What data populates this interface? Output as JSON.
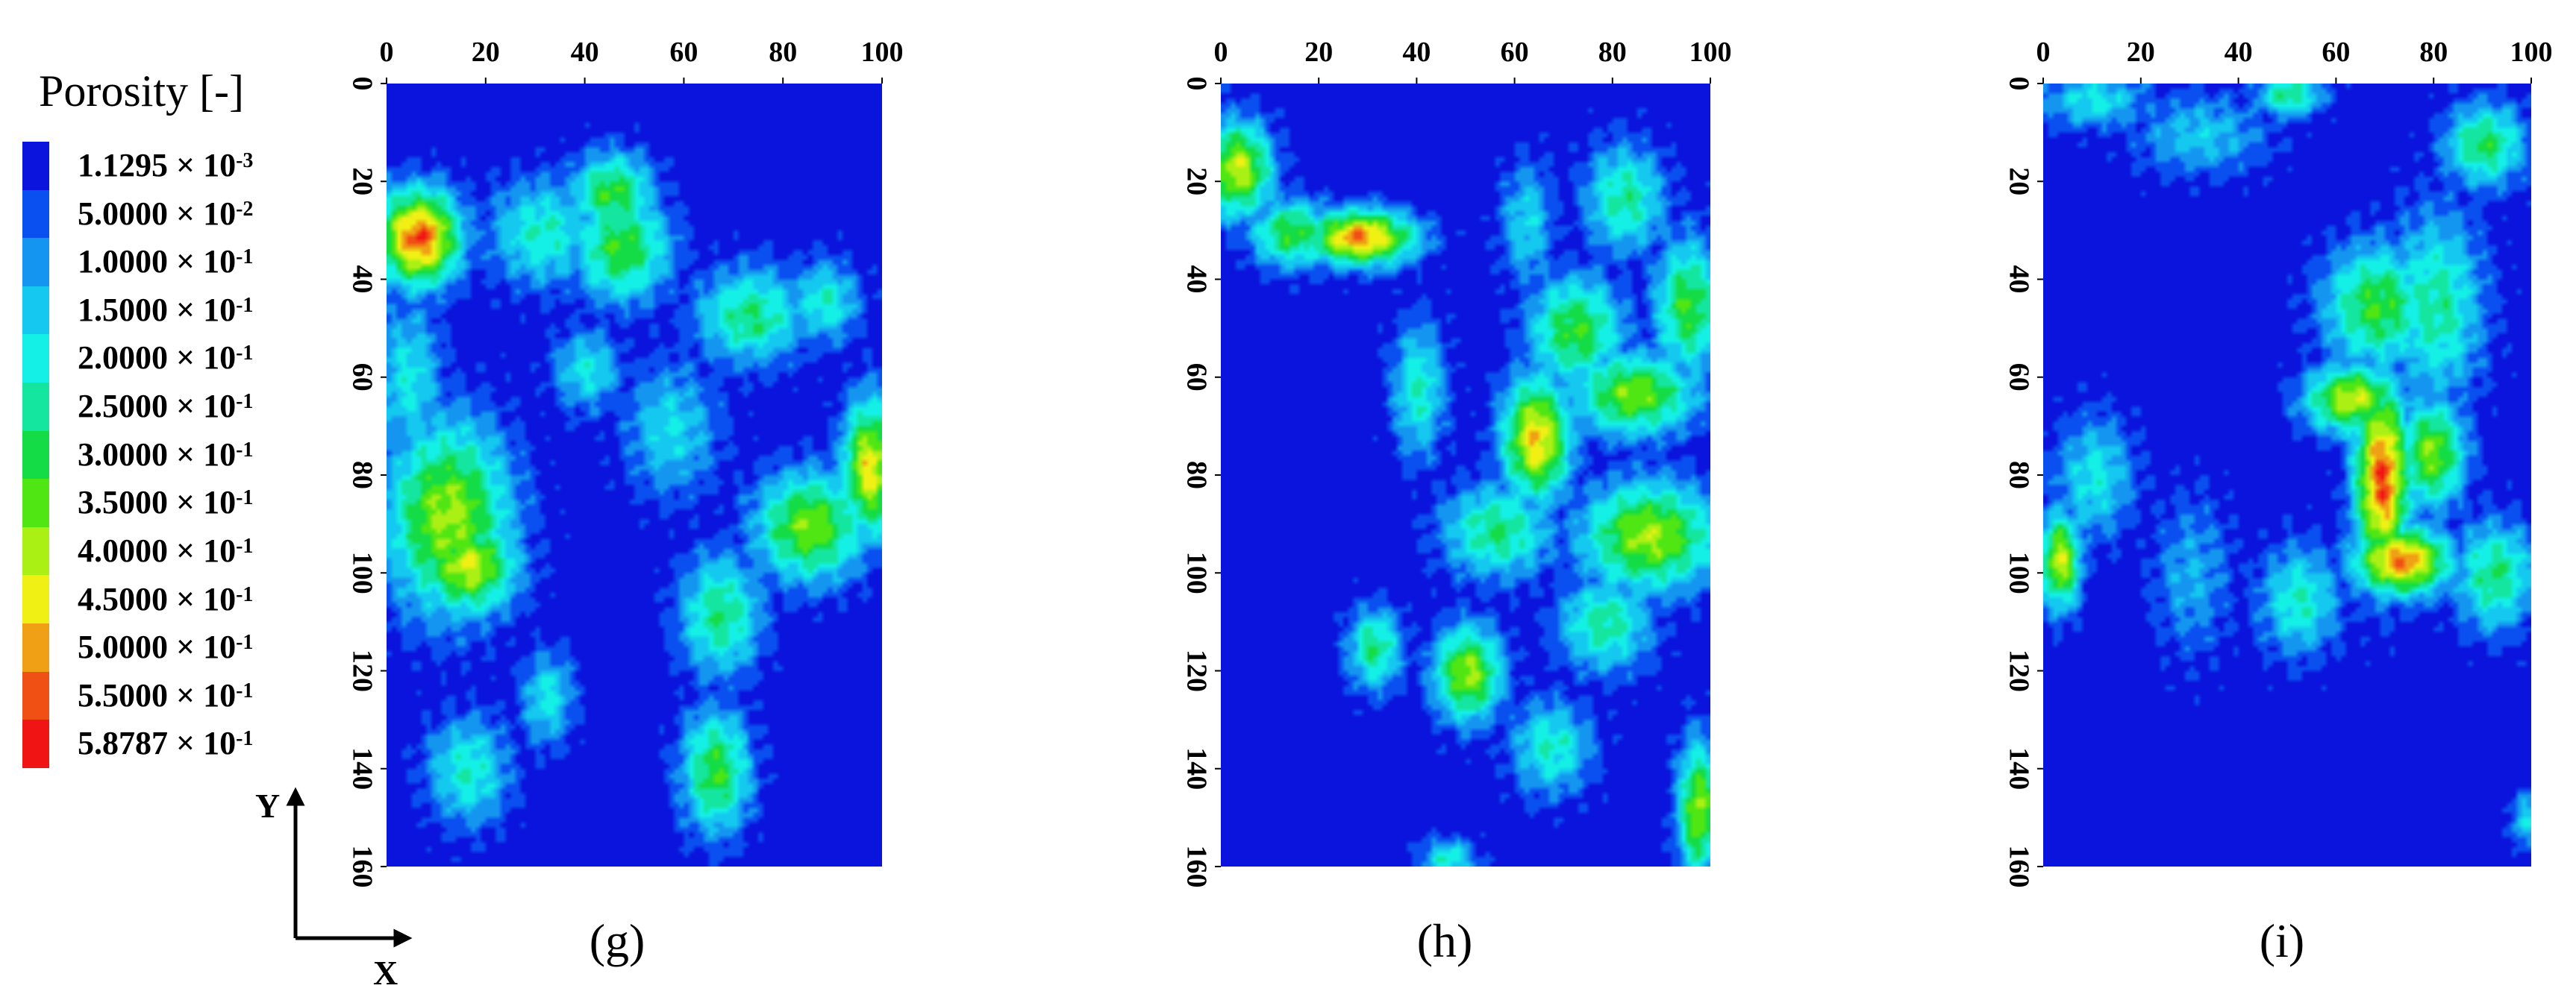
{
  "chart_data": [
    {
      "type": "heatmap",
      "panel_label": "(g)",
      "x_ticks": [
        0,
        20,
        40,
        60,
        80,
        100
      ],
      "y_ticks": [
        0,
        20,
        40,
        60,
        80,
        100,
        120,
        140,
        160
      ],
      "xlim": [
        0,
        100
      ],
      "ylim": [
        0,
        160
      ],
      "x_axis_position": "top",
      "y_axis_inverted": true,
      "background_value": 0.0011295,
      "hotspots": [
        {
          "x": 6,
          "y": 31,
          "peak": 0.58,
          "sx": 6,
          "sy": 7
        },
        {
          "x": 45,
          "y": 22,
          "peak": 0.35,
          "sx": 6,
          "sy": 6
        },
        {
          "x": 47,
          "y": 33,
          "peak": 0.35,
          "sx": 7,
          "sy": 8
        },
        {
          "x": 31,
          "y": 30,
          "peak": 0.25,
          "sx": 8,
          "sy": 8
        },
        {
          "x": 12,
          "y": 88,
          "peak": 0.42,
          "sx": 9,
          "sy": 14
        },
        {
          "x": 16,
          "y": 98,
          "peak": 0.45,
          "sx": 7,
          "sy": 7
        },
        {
          "x": 73,
          "y": 47,
          "peak": 0.3,
          "sx": 8,
          "sy": 7
        },
        {
          "x": 85,
          "y": 90,
          "peak": 0.4,
          "sx": 8,
          "sy": 8
        },
        {
          "x": 97,
          "y": 78,
          "peak": 0.48,
          "sx": 4,
          "sy": 10
        },
        {
          "x": 67,
          "y": 108,
          "peak": 0.3,
          "sx": 6,
          "sy": 9
        },
        {
          "x": 66,
          "y": 140,
          "peak": 0.35,
          "sx": 5,
          "sy": 9
        },
        {
          "x": 16,
          "y": 140,
          "peak": 0.25,
          "sx": 6,
          "sy": 8
        },
        {
          "x": 32,
          "y": 125,
          "peak": 0.22,
          "sx": 4,
          "sy": 7
        },
        {
          "x": 57,
          "y": 70,
          "peak": 0.2,
          "sx": 7,
          "sy": 10
        },
        {
          "x": 4,
          "y": 60,
          "peak": 0.22,
          "sx": 5,
          "sy": 12
        },
        {
          "x": 88,
          "y": 44,
          "peak": 0.25,
          "sx": 5,
          "sy": 6
        },
        {
          "x": 40,
          "y": 58,
          "peak": 0.22,
          "sx": 5,
          "sy": 6
        }
      ]
    },
    {
      "type": "heatmap",
      "panel_label": "(h)",
      "x_ticks": [
        0,
        20,
        40,
        60,
        80,
        100
      ],
      "y_ticks": [
        0,
        20,
        40,
        60,
        80,
        100,
        120,
        140,
        160
      ],
      "xlim": [
        0,
        100
      ],
      "ylim": [
        0,
        160
      ],
      "x_axis_position": "top",
      "y_axis_inverted": true,
      "background_value": 0.0011295,
      "hotspots": [
        {
          "x": 3,
          "y": 17,
          "peak": 0.45,
          "sx": 5,
          "sy": 7
        },
        {
          "x": 28,
          "y": 31,
          "peak": 0.55,
          "sx": 8,
          "sy": 4
        },
        {
          "x": 14,
          "y": 30,
          "peak": 0.35,
          "sx": 6,
          "sy": 5
        },
        {
          "x": 64,
          "y": 72,
          "peak": 0.5,
          "sx": 5,
          "sy": 9
        },
        {
          "x": 72,
          "y": 50,
          "peak": 0.35,
          "sx": 7,
          "sy": 8
        },
        {
          "x": 95,
          "y": 45,
          "peak": 0.35,
          "sx": 5,
          "sy": 10
        },
        {
          "x": 84,
          "y": 63,
          "peak": 0.4,
          "sx": 9,
          "sy": 6
        },
        {
          "x": 87,
          "y": 92,
          "peak": 0.42,
          "sx": 10,
          "sy": 8
        },
        {
          "x": 56,
          "y": 91,
          "peak": 0.3,
          "sx": 8,
          "sy": 7
        },
        {
          "x": 50,
          "y": 120,
          "peak": 0.42,
          "sx": 5,
          "sy": 7
        },
        {
          "x": 97,
          "y": 148,
          "peak": 0.42,
          "sx": 3,
          "sy": 10
        },
        {
          "x": 31,
          "y": 115,
          "peak": 0.3,
          "sx": 4,
          "sy": 6
        },
        {
          "x": 40,
          "y": 62,
          "peak": 0.25,
          "sx": 4,
          "sy": 10
        },
        {
          "x": 82,
          "y": 23,
          "peak": 0.28,
          "sx": 6,
          "sy": 8
        },
        {
          "x": 62,
          "y": 28,
          "peak": 0.2,
          "sx": 4,
          "sy": 9
        },
        {
          "x": 78,
          "y": 110,
          "peak": 0.28,
          "sx": 7,
          "sy": 7
        },
        {
          "x": 67,
          "y": 135,
          "peak": 0.25,
          "sx": 6,
          "sy": 7
        },
        {
          "x": 46,
          "y": 158,
          "peak": 0.25,
          "sx": 4,
          "sy": 3
        }
      ]
    },
    {
      "type": "heatmap",
      "panel_label": "(i)",
      "x_ticks": [
        0,
        20,
        40,
        60,
        80,
        100
      ],
      "y_ticks": [
        0,
        20,
        40,
        60,
        80,
        100,
        120,
        140,
        160
      ],
      "xlim": [
        0,
        100
      ],
      "ylim": [
        0,
        160
      ],
      "x_axis_position": "top",
      "y_axis_inverted": true,
      "background_value": 0.0011295,
      "hotspots": [
        {
          "x": 69,
          "y": 80,
          "peak": 0.58,
          "sx": 4,
          "sy": 14
        },
        {
          "x": 73,
          "y": 97,
          "peak": 0.55,
          "sx": 7,
          "sy": 5
        },
        {
          "x": 63,
          "y": 64,
          "peak": 0.45,
          "sx": 7,
          "sy": 5
        },
        {
          "x": 79,
          "y": 75,
          "peak": 0.4,
          "sx": 5,
          "sy": 8
        },
        {
          "x": 68,
          "y": 45,
          "peak": 0.35,
          "sx": 8,
          "sy": 9
        },
        {
          "x": 80,
          "y": 45,
          "peak": 0.28,
          "sx": 7,
          "sy": 14
        },
        {
          "x": 92,
          "y": 100,
          "peak": 0.3,
          "sx": 6,
          "sy": 8
        },
        {
          "x": 3,
          "y": 97,
          "peak": 0.45,
          "sx": 3,
          "sy": 7
        },
        {
          "x": 10,
          "y": 80,
          "peak": 0.22,
          "sx": 6,
          "sy": 9
        },
        {
          "x": 50,
          "y": 2,
          "peak": 0.3,
          "sx": 5,
          "sy": 3
        },
        {
          "x": 90,
          "y": 12,
          "peak": 0.32,
          "sx": 6,
          "sy": 6
        },
        {
          "x": 32,
          "y": 10,
          "peak": 0.18,
          "sx": 10,
          "sy": 6
        },
        {
          "x": 52,
          "y": 105,
          "peak": 0.25,
          "sx": 6,
          "sy": 8
        },
        {
          "x": 10,
          "y": 3,
          "peak": 0.22,
          "sx": 8,
          "sy": 4
        },
        {
          "x": 98,
          "y": 150,
          "peak": 0.2,
          "sx": 2,
          "sy": 4
        },
        {
          "x": 30,
          "y": 100,
          "peak": 0.15,
          "sx": 6,
          "sy": 12
        }
      ]
    }
  ],
  "legend": {
    "title": "Porosity [-]",
    "levels": [
      {
        "mantissa": "1.1295",
        "exponent": "-3",
        "color": "#0a14dc"
      },
      {
        "mantissa": "5.0000",
        "exponent": "-2",
        "color": "#0a50f0"
      },
      {
        "mantissa": "1.0000",
        "exponent": "-1",
        "color": "#1496f0"
      },
      {
        "mantissa": "1.5000",
        "exponent": "-1",
        "color": "#14c8f0"
      },
      {
        "mantissa": "2.0000",
        "exponent": "-1",
        "color": "#14f0e6"
      },
      {
        "mantissa": "2.5000",
        "exponent": "-1",
        "color": "#14e6a0"
      },
      {
        "mantissa": "3.0000",
        "exponent": "-1",
        "color": "#14dc46"
      },
      {
        "mantissa": "3.5000",
        "exponent": "-1",
        "color": "#50e614"
      },
      {
        "mantissa": "4.0000",
        "exponent": "-1",
        "color": "#aaf014"
      },
      {
        "mantissa": "4.5000",
        "exponent": "-1",
        "color": "#f0f014"
      },
      {
        "mantissa": "5.0000",
        "exponent": "-1",
        "color": "#f0a014"
      },
      {
        "mantissa": "5.5000",
        "exponent": "-1",
        "color": "#f05014"
      },
      {
        "mantissa": "5.8787",
        "exponent": "-1",
        "color": "#f01414"
      }
    ],
    "times_symbol": "×",
    "base": "10"
  },
  "axes_indicator": {
    "x_label": "X",
    "y_label": "Y"
  }
}
